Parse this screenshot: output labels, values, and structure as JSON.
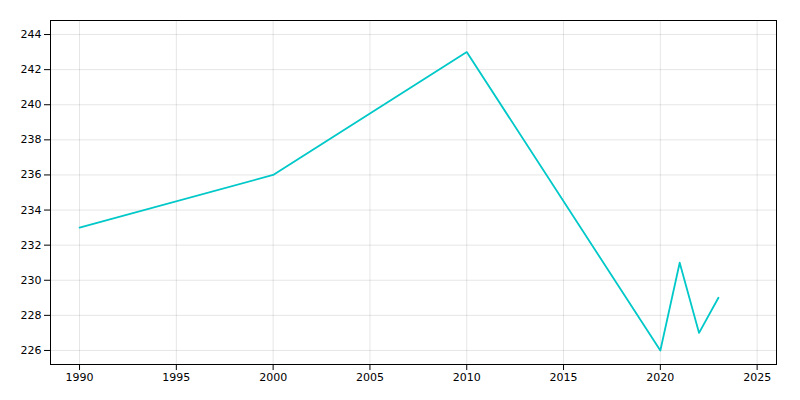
{
  "chart_data": {
    "type": "line",
    "x": [
      1990,
      2000,
      2010,
      2020,
      2021,
      2022,
      2023
    ],
    "values": [
      233,
      236,
      243,
      226,
      231,
      227,
      229
    ],
    "color": "#00C8C8",
    "xlim": [
      1988.5,
      2026
    ],
    "ylim": [
      225.2,
      244.8
    ],
    "xticks": [
      1990,
      1995,
      2000,
      2005,
      2010,
      2015,
      2020,
      2025
    ],
    "yticks": [
      226,
      228,
      230,
      232,
      234,
      236,
      238,
      240,
      242,
      244
    ],
    "grid": true
  }
}
